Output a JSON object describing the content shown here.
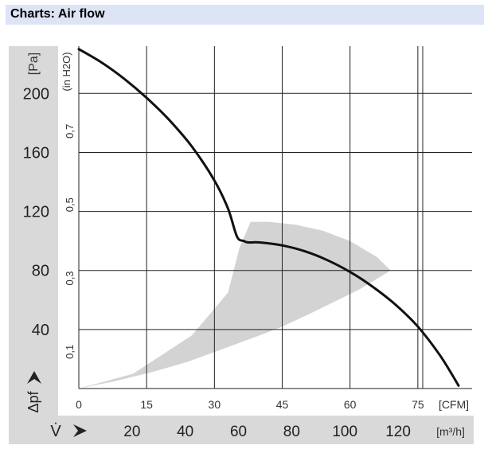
{
  "header": {
    "title": "Charts: Air flow"
  },
  "chart_data": {
    "type": "line",
    "title": "Charts: Air flow",
    "ylabel": "Δpf",
    "yunit_primary": "[Pa]",
    "yunit_secondary": "(in H2O)",
    "xlabel": "V̇",
    "xunit_primary": "[CFM]",
    "xunit_secondary": "[m³/h]",
    "xlim": [
      0,
      87
    ],
    "ylim": [
      0,
      232
    ],
    "x_ticks": [
      "0",
      "15",
      "30",
      "45",
      "60",
      "75"
    ],
    "y_ticks": [
      "40",
      "80",
      "120",
      "160",
      "200"
    ],
    "y_secondary_ticks": [
      "0,1",
      "0,3",
      "0,5",
      "0,7"
    ],
    "x_secondary_ticks": [
      "20",
      "40",
      "60",
      "80",
      "100",
      "120"
    ],
    "grid": true,
    "series": [
      {
        "x": [
          0,
          5,
          10,
          15,
          20,
          25,
          30,
          33,
          35,
          36.5,
          37.5,
          40,
          45,
          50,
          55,
          60,
          65,
          70,
          75,
          80,
          84
        ],
        "y": [
          230,
          221,
          210,
          197,
          182,
          164,
          141,
          122,
          103,
          100,
          99,
          99,
          97,
          93,
          87,
          79,
          69,
          57,
          42,
          22,
          2
        ]
      }
    ],
    "operating_range": {
      "x": [
        0,
        12,
        25,
        33,
        35.5,
        38,
        42,
        48,
        54,
        60,
        66,
        69,
        62,
        52,
        45,
        40,
        32,
        24,
        16,
        8,
        0
      ],
      "y": [
        0,
        10,
        36,
        65,
        95,
        113,
        113,
        111,
        107,
        100,
        89,
        80,
        67,
        52,
        42,
        36,
        27,
        18,
        11,
        5,
        0
      ]
    }
  }
}
